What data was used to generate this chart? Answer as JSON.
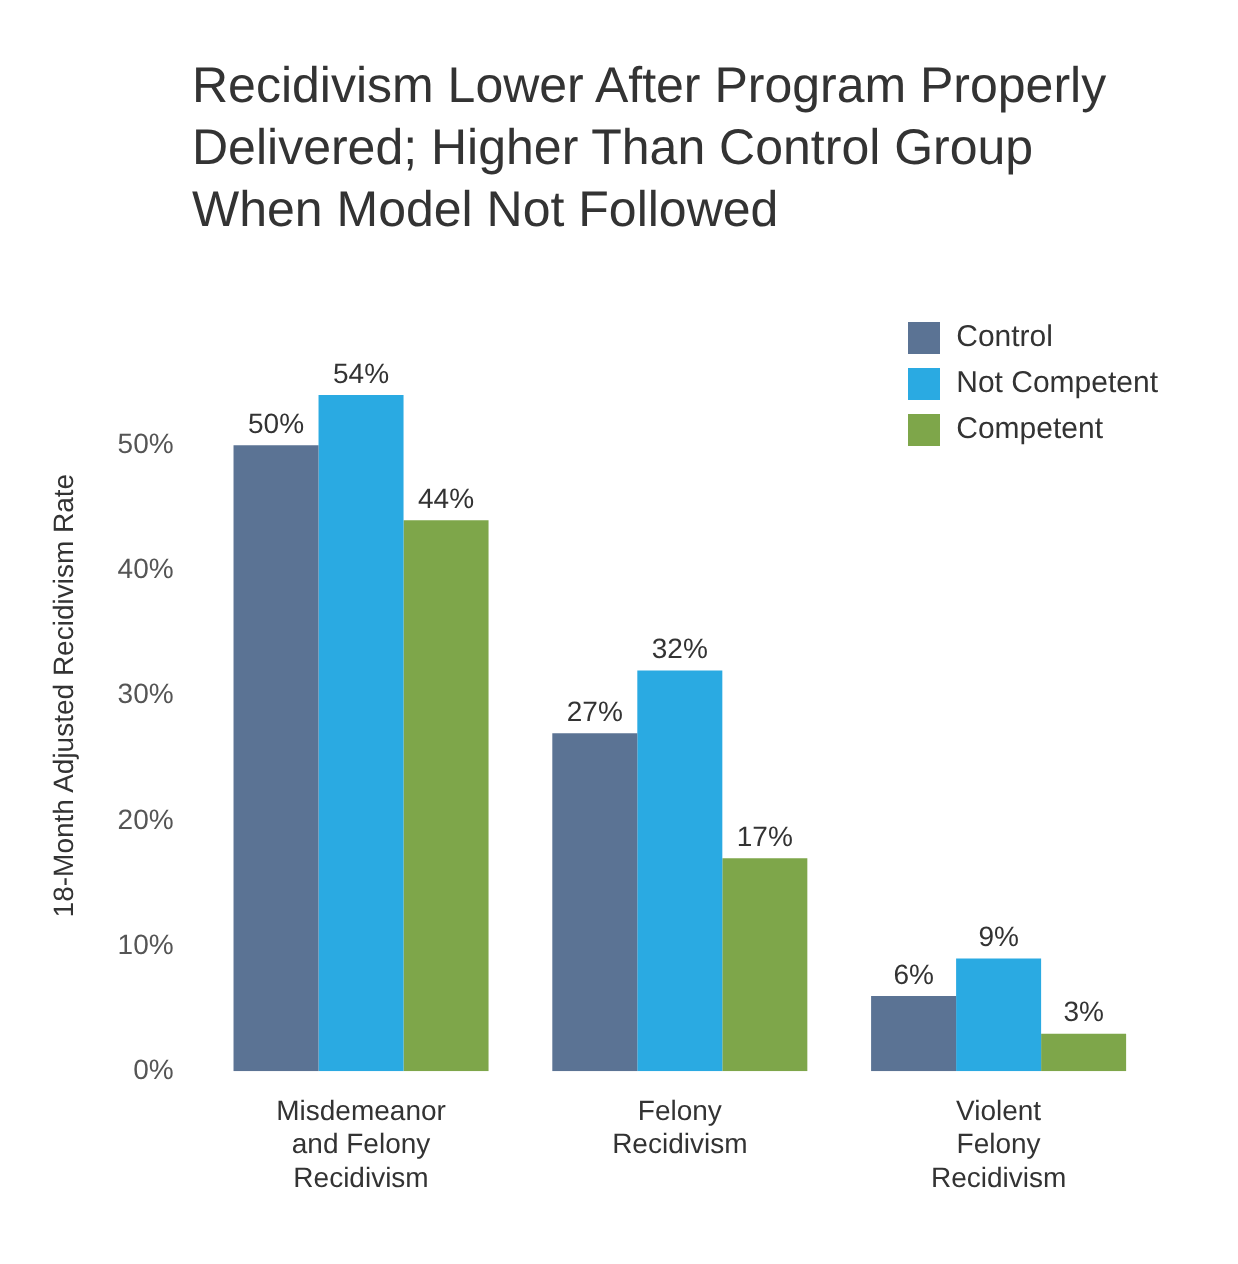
{
  "chart_data": {
    "type": "bar",
    "title": "Recidivism Lower After Program Properly Delivered; Higher Than Control Group When Model Not Followed",
    "ylabel": "18-Month Adjusted Recidivism Rate",
    "categories": [
      "Misdemeanor and Felony Recidivism",
      "Felony Recidivism",
      "Violent Felony Recidivism"
    ],
    "series": [
      {
        "name": "Control",
        "color": "#5b7394",
        "values": [
          50,
          27,
          6
        ],
        "value_labels": [
          "50%",
          "27%",
          "6%"
        ]
      },
      {
        "name": "Not Competent",
        "color": "#2aaae2",
        "values": [
          54,
          32,
          9
        ],
        "value_labels": [
          "54%",
          "32%",
          "9%"
        ]
      },
      {
        "name": "Competent",
        "color": "#7ea64a",
        "values": [
          44,
          17,
          3
        ],
        "value_labels": [
          "44%",
          "17%",
          "3%"
        ]
      }
    ],
    "ylim": [
      0,
      60
    ],
    "yticks": [
      {
        "value": 0,
        "label": "0%"
      },
      {
        "value": 10,
        "label": "10%"
      },
      {
        "value": 20,
        "label": "20%"
      },
      {
        "value": 30,
        "label": "30%"
      },
      {
        "value": 40,
        "label": "40%"
      },
      {
        "value": 50,
        "label": "50%"
      }
    ],
    "grid": false,
    "legend": "top right"
  }
}
